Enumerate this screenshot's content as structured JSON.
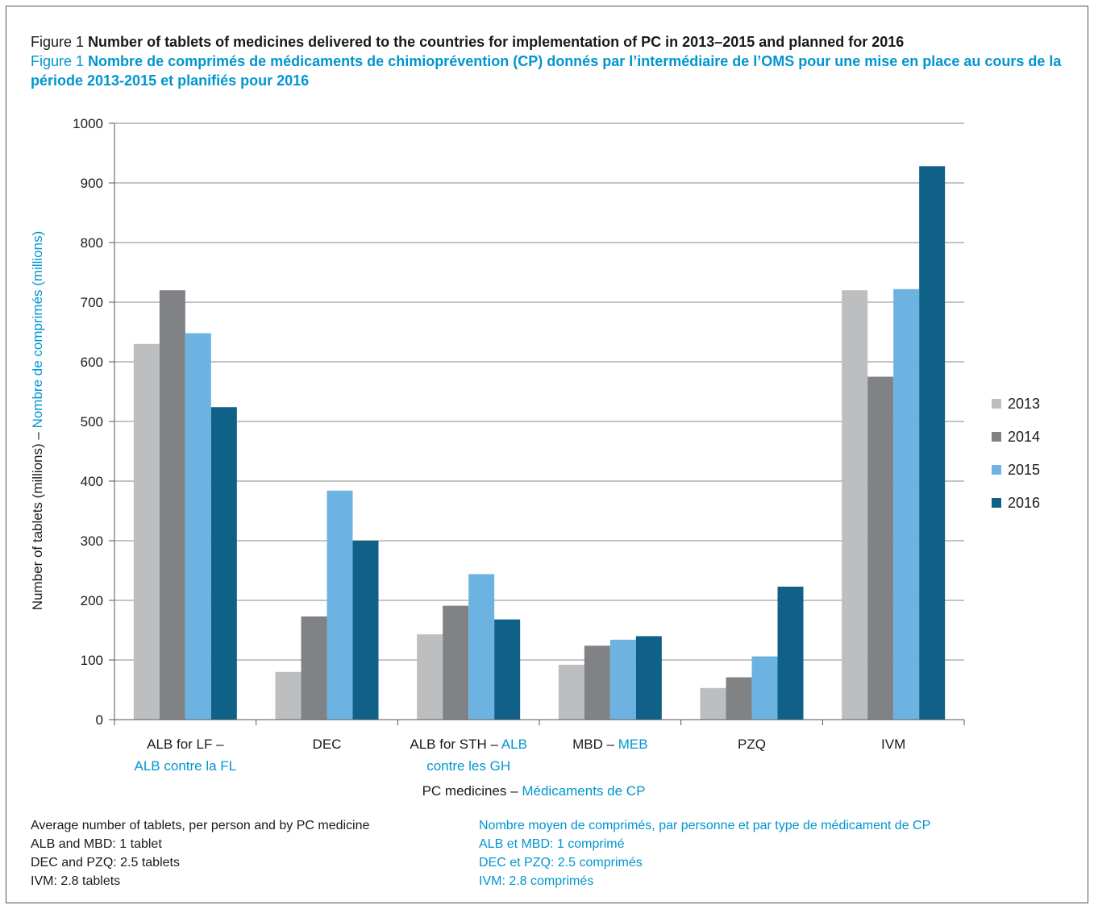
{
  "title": {
    "en_prefix": "Figure 1",
    "en_text": "Number of tablets of medicines delivered to the countries for implementation of PC in 2013–2015 and planned for 2016",
    "fr_prefix": "Figure 1",
    "fr_text": "Nombre de comprimés de médicaments de chimioprévention (CP) donnés par l’intermédiaire de l’OMS pour une mise en place au cours de la période 2013-2015 et planifiés pour 2016"
  },
  "chart_data": {
    "type": "bar",
    "categories": [
      {
        "en": "ALB for LF –",
        "fr": "ALB contre la FL"
      },
      {
        "en": "DEC",
        "fr": ""
      },
      {
        "en": "ALB for STH –",
        "fr_inline": "ALB",
        "fr": "contre les GH"
      },
      {
        "en": "MBD –",
        "fr_inline": "MEB",
        "fr": ""
      },
      {
        "en": "PZQ",
        "fr": ""
      },
      {
        "en": "IVM",
        "fr": ""
      }
    ],
    "series": [
      {
        "name": "2013",
        "color": "#bdbec0",
        "values": [
          630,
          80,
          143,
          92,
          53,
          720
        ]
      },
      {
        "name": "2014",
        "color": "#808285",
        "values": [
          720,
          173,
          191,
          124,
          71,
          575
        ]
      },
      {
        "name": "2015",
        "color": "#6db3e2",
        "values": [
          648,
          384,
          244,
          134,
          106,
          722
        ]
      },
      {
        "name": "2016",
        "color": "#106188",
        "values": [
          524,
          300,
          168,
          140,
          223,
          928
        ]
      }
    ],
    "ylim": [
      0,
      1000
    ],
    "yticks": [
      0,
      100,
      200,
      300,
      400,
      500,
      600,
      700,
      800,
      900,
      1000
    ],
    "ylabel_en": "Number of tablets (millions) – ",
    "ylabel_fr": "Nombre de comprimés (millions)",
    "xlabel_en": "PC medicines – ",
    "xlabel_fr": "Médicaments de CP",
    "grid": "horizontal",
    "legend_position": "right"
  },
  "notes": {
    "en": [
      "Average number of tablets, per person and by PC medicine",
      "ALB and MBD: 1 tablet",
      "DEC and PZQ: 2.5 tablets",
      "IVM: 2.8 tablets"
    ],
    "fr": [
      "Nombre moyen de comprimés, par personne et par type de médicament de CP",
      "ALB et MBD: 1 comprimé",
      "DEC et PZQ: 2.5 comprimés",
      "IVM: 2.8 comprimés"
    ]
  }
}
